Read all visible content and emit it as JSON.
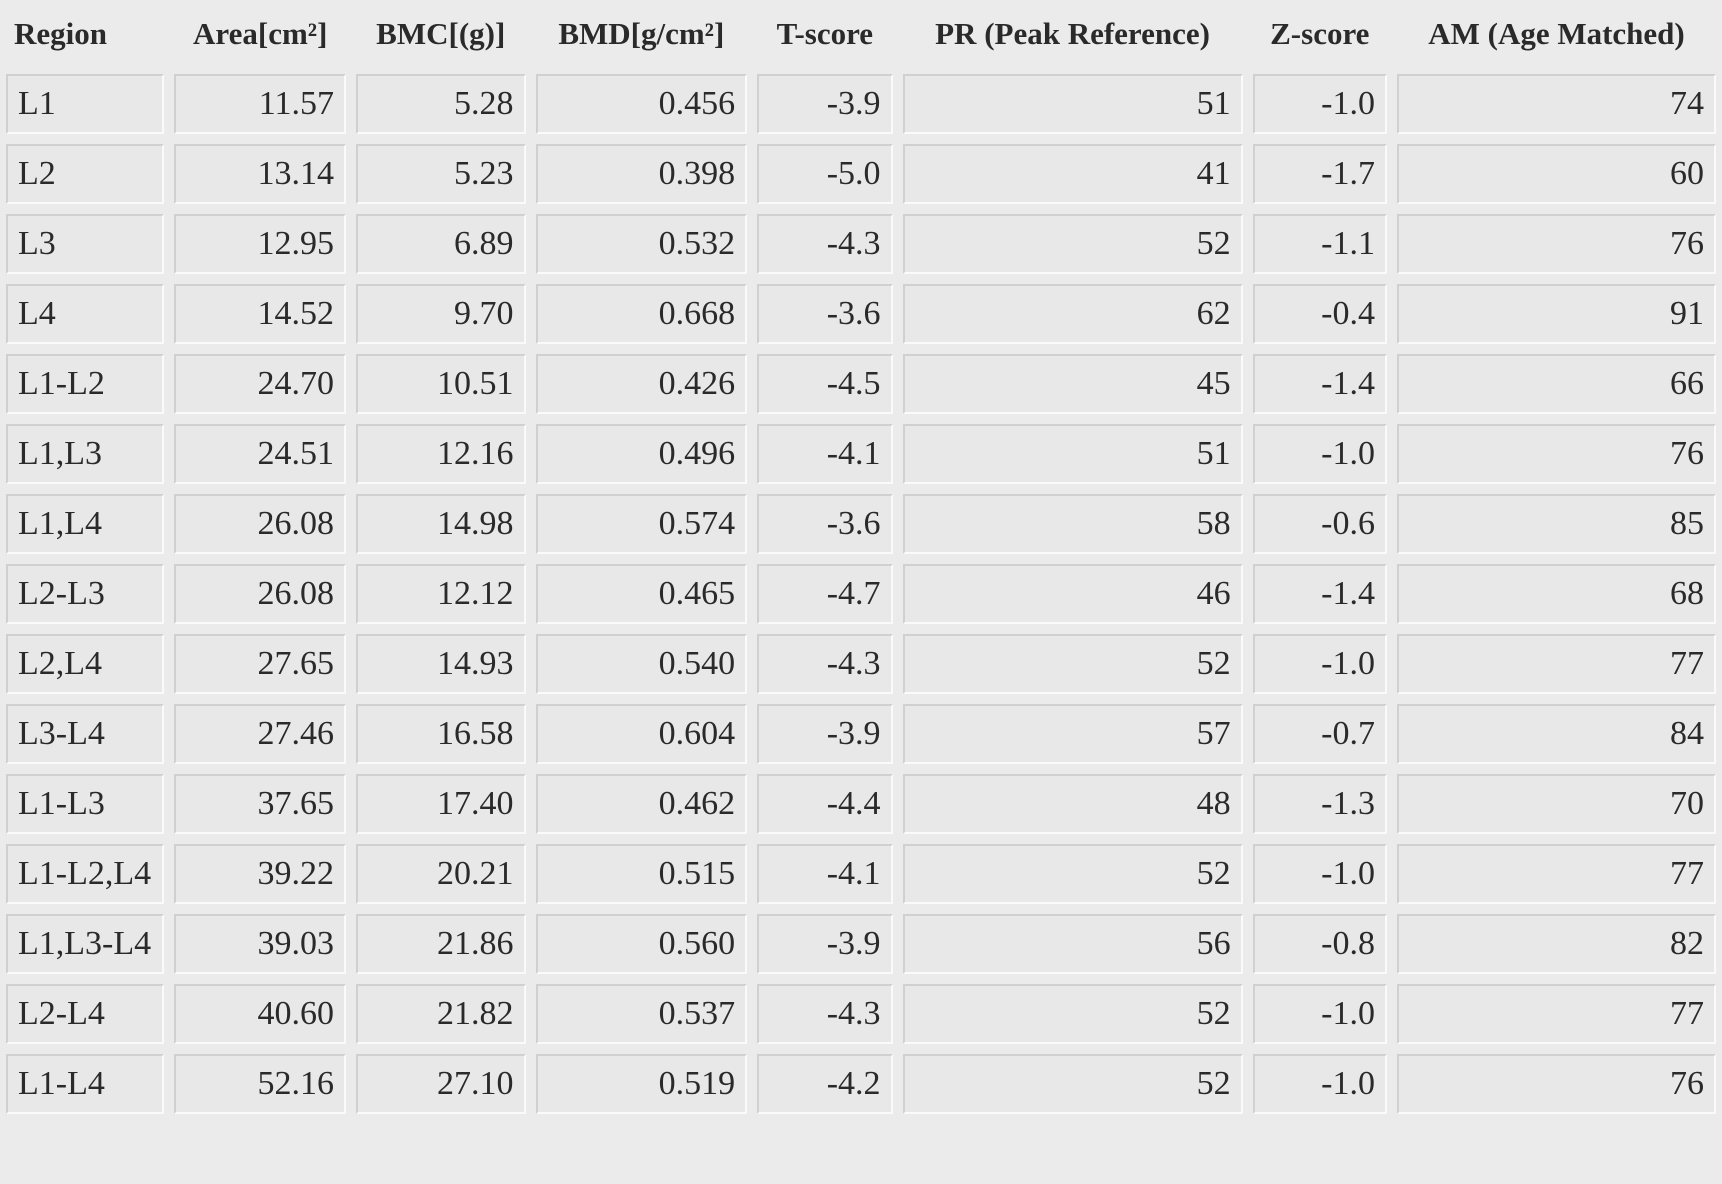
{
  "table": {
    "headers": [
      "Region",
      "Area[cm²]",
      "BMC[(g)]",
      "BMD[g/cm²]",
      "T-score",
      "PR (Peak Reference)",
      "Z-score",
      "AM (Age Matched)"
    ],
    "rows": [
      [
        "L1",
        "11.57",
        "5.28",
        "0.456",
        "-3.9",
        "51",
        "-1.0",
        "74"
      ],
      [
        "L2",
        "13.14",
        "5.23",
        "0.398",
        "-5.0",
        "41",
        "-1.7",
        "60"
      ],
      [
        "L3",
        "12.95",
        "6.89",
        "0.532",
        "-4.3",
        "52",
        "-1.1",
        "76"
      ],
      [
        "L4",
        "14.52",
        "9.70",
        "0.668",
        "-3.6",
        "62",
        "-0.4",
        "91"
      ],
      [
        "L1-L2",
        "24.70",
        "10.51",
        "0.426",
        "-4.5",
        "45",
        "-1.4",
        "66"
      ],
      [
        "L1,L3",
        "24.51",
        "12.16",
        "0.496",
        "-4.1",
        "51",
        "-1.0",
        "76"
      ],
      [
        "L1,L4",
        "26.08",
        "14.98",
        "0.574",
        "-3.6",
        "58",
        "-0.6",
        "85"
      ],
      [
        "L2-L3",
        "26.08",
        "12.12",
        "0.465",
        "-4.7",
        "46",
        "-1.4",
        "68"
      ],
      [
        "L2,L4",
        "27.65",
        "14.93",
        "0.540",
        "-4.3",
        "52",
        "-1.0",
        "77"
      ],
      [
        "L3-L4",
        "27.46",
        "16.58",
        "0.604",
        "-3.9",
        "57",
        "-0.7",
        "84"
      ],
      [
        "L1-L3",
        "37.65",
        "17.40",
        "0.462",
        "-4.4",
        "48",
        "-1.3",
        "70"
      ],
      [
        "L1-L2,L4",
        "39.22",
        "20.21",
        "0.515",
        "-4.1",
        "52",
        "-1.0",
        "77"
      ],
      [
        "L1,L3-L4",
        "39.03",
        "21.86",
        "0.560",
        "-3.9",
        "56",
        "-0.8",
        "82"
      ],
      [
        "L2-L4",
        "40.60",
        "21.82",
        "0.537",
        "-4.3",
        "52",
        "-1.0",
        "77"
      ],
      [
        "L1-L4",
        "52.16",
        "27.10",
        "0.519",
        "-4.2",
        "52",
        "-1.0",
        "76"
      ]
    ]
  }
}
